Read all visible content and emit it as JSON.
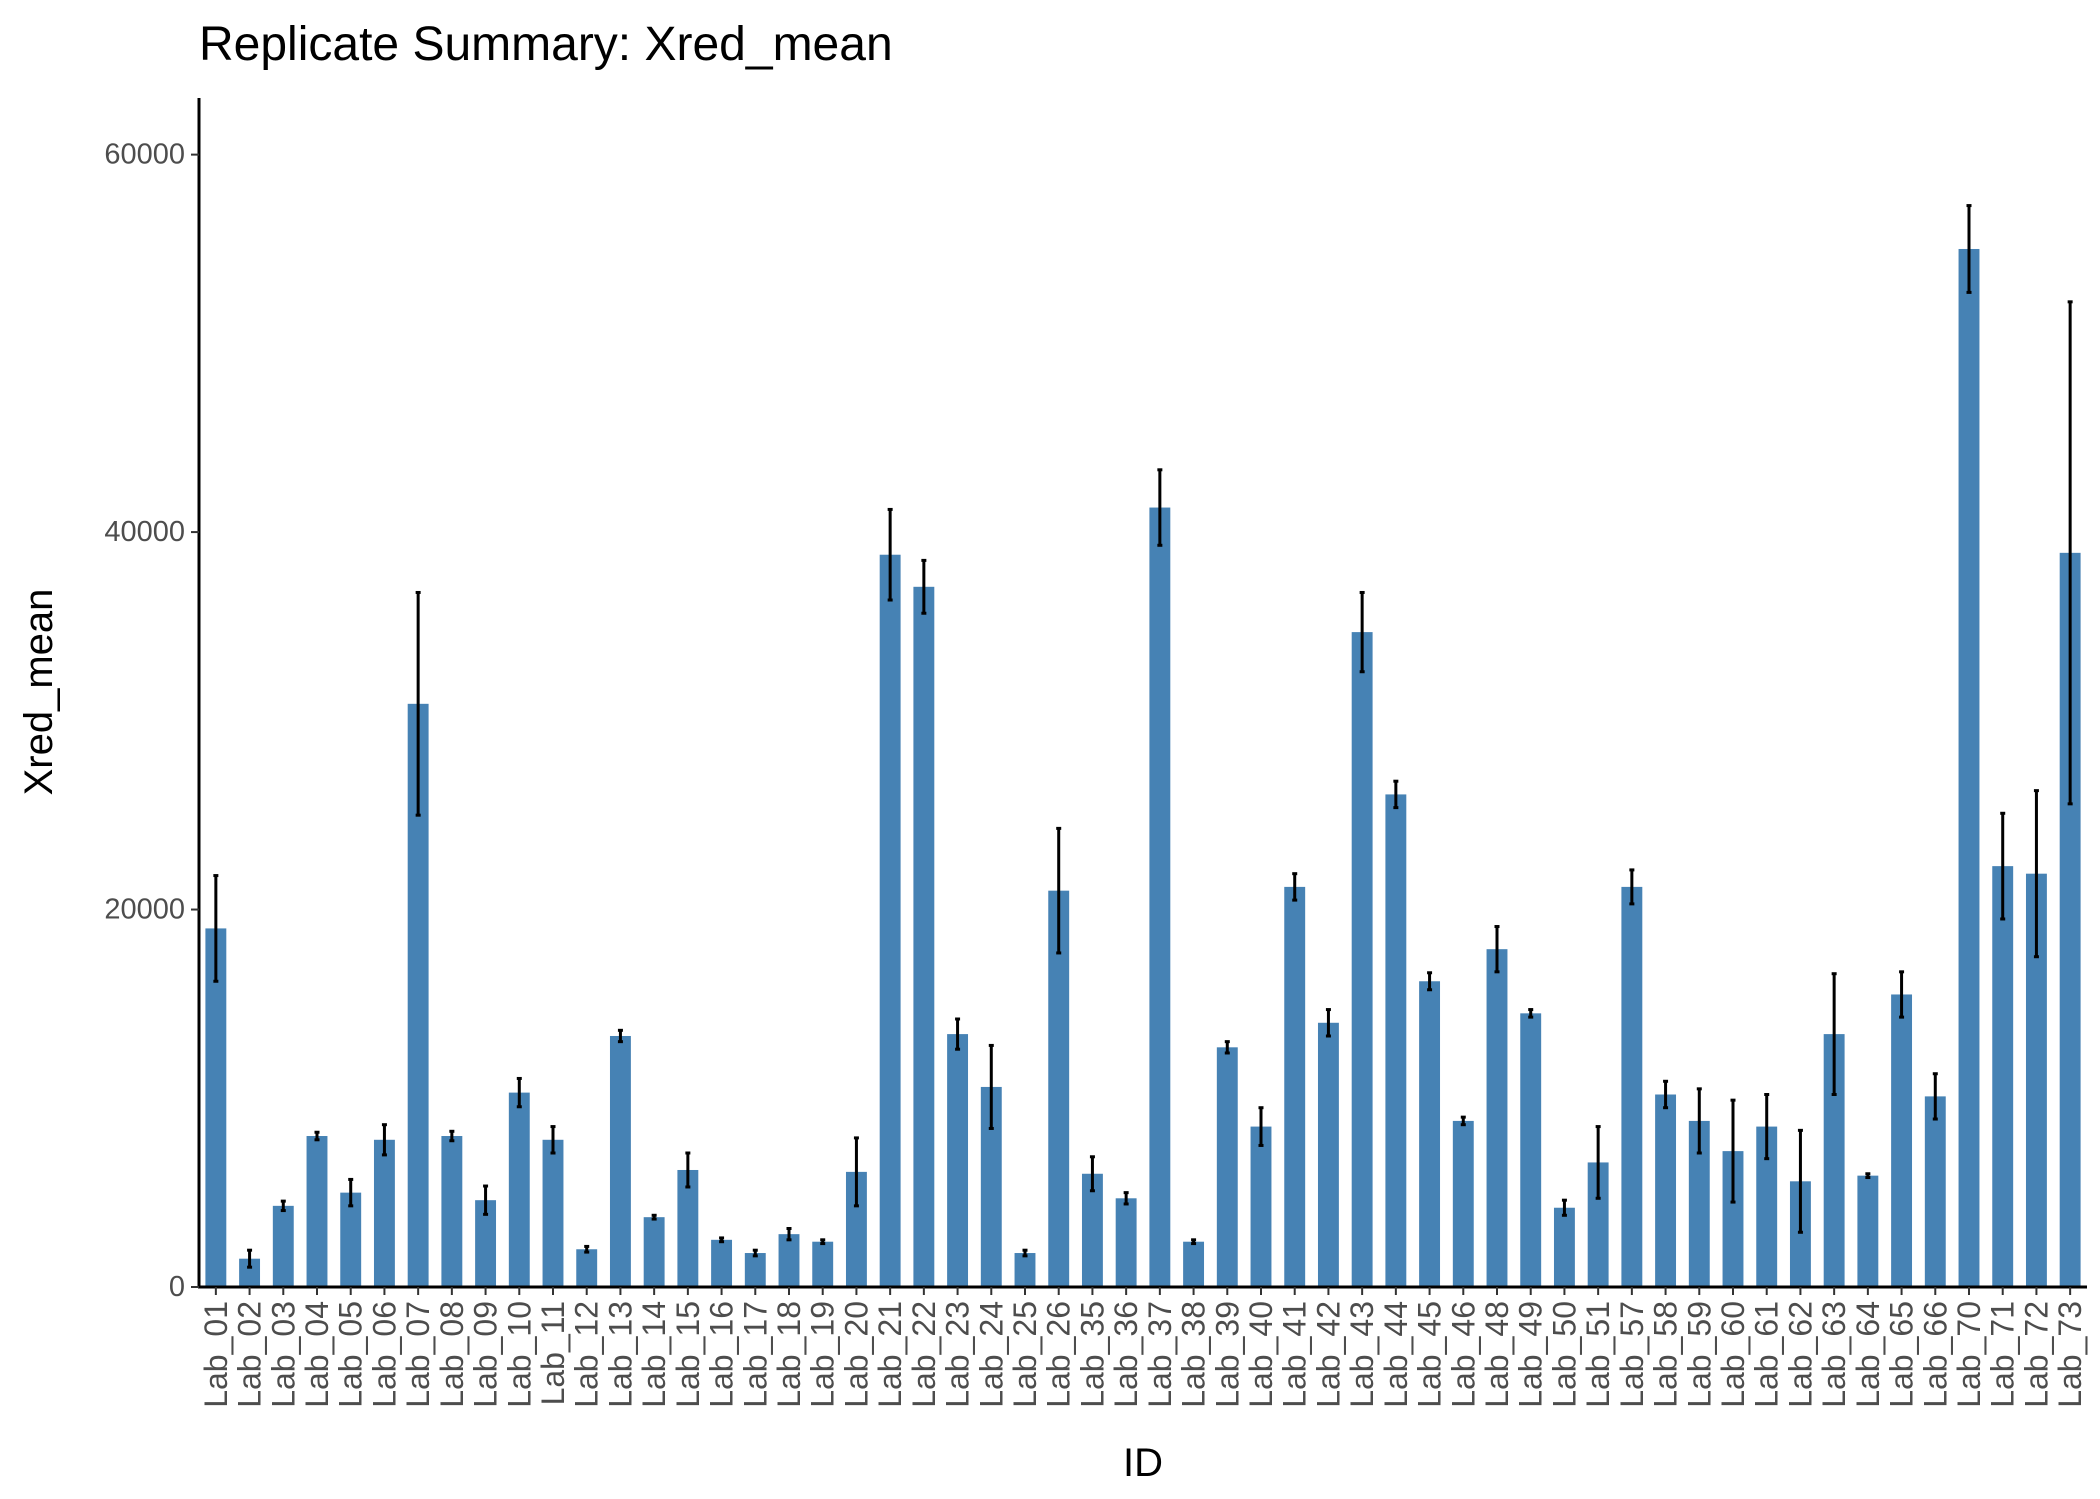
{
  "chart_data": {
    "type": "bar",
    "title": "Replicate Summary: Xred_mean",
    "xlabel": "ID",
    "ylabel": "Xred_mean",
    "ylim": [
      0,
      63000
    ],
    "yticks": [
      0,
      20000,
      40000,
      60000
    ],
    "grid": false,
    "bar_color": "#4682B4",
    "error_bar_color": "#000000",
    "categories": [
      "Lab_01",
      "Lab_02",
      "Lab_03",
      "Lab_04",
      "Lab_05",
      "Lab_06",
      "Lab_07",
      "Lab_08",
      "Lab_09",
      "Lab_10",
      "Lab_11",
      "Lab_12",
      "Lab_13",
      "Lab_14",
      "Lab_15",
      "Lab_16",
      "Lab_17",
      "Lab_18",
      "Lab_19",
      "Lab_20",
      "Lab_21",
      "Lab_22",
      "Lab_23",
      "Lab_24",
      "Lab_25",
      "Lab_26",
      "Lab_35",
      "Lab_36",
      "Lab_37",
      "Lab_38",
      "Lab_39",
      "Lab_40",
      "Lab_41",
      "Lab_42",
      "Lab_43",
      "Lab_44",
      "Lab_45",
      "Lab_46",
      "Lab_48",
      "Lab_49",
      "Lab_50",
      "Lab_51",
      "Lab_57",
      "Lab_58",
      "Lab_59",
      "Lab_60",
      "Lab_61",
      "Lab_62",
      "Lab_63",
      "Lab_64",
      "Lab_65",
      "Lab_66",
      "Lab_70",
      "Lab_71",
      "Lab_72",
      "Lab_73"
    ],
    "values": [
      19000,
      1500,
      4300,
      8000,
      5000,
      7800,
      30900,
      8000,
      4600,
      10300,
      7800,
      2000,
      13300,
      3700,
      6200,
      2500,
      1800,
      2800,
      2400,
      6100,
      38800,
      37100,
      13400,
      10600,
      1800,
      21000,
      6000,
      4700,
      41300,
      2400,
      12700,
      8500,
      21200,
      14000,
      34700,
      26100,
      16200,
      8800,
      17900,
      14500,
      4200,
      6600,
      21200,
      10200,
      8800,
      7200,
      8500,
      5600,
      13400,
      5900,
      15500,
      10100,
      55000,
      22300,
      21900,
      38900
    ],
    "errors": [
      2800,
      450,
      250,
      200,
      700,
      800,
      5900,
      250,
      750,
      750,
      700,
      150,
      300,
      100,
      900,
      100,
      150,
      300,
      100,
      1800,
      2400,
      1400,
      800,
      2200,
      150,
      3300,
      900,
      300,
      2000,
      100,
      300,
      1000,
      700,
      700,
      2100,
      700,
      450,
      200,
      1200,
      200,
      400,
      1900,
      900,
      700,
      1700,
      2700,
      1700,
      2700,
      3200,
      100,
      1200,
      1200,
      2300,
      2800,
      4400,
      13300
    ]
  }
}
